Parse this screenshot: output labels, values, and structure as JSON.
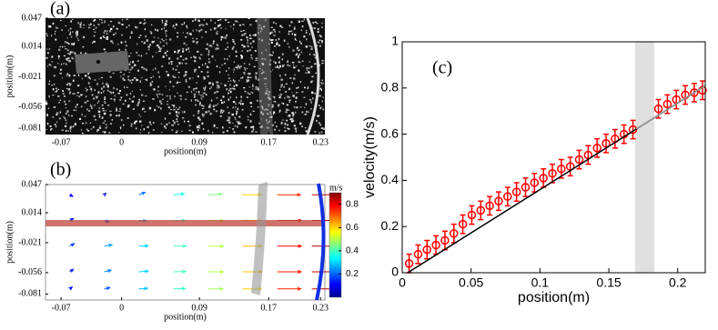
{
  "chart_data": [
    {
      "type": "image",
      "panel_label": "(a)",
      "xlabel": "position(m)",
      "ylabel": "position(m)",
      "xlim": [
        -0.088,
        0.235
      ],
      "ylim": [
        -0.088,
        0.047
      ],
      "xticks": [
        -0.07,
        0,
        0.09,
        0.17,
        0.23
      ],
      "yticks": [
        0.047,
        0.014,
        -0.021,
        -0.056,
        -0.081
      ]
    },
    {
      "type": "quiver",
      "panel_label": "(b)",
      "xlabel": "position(m)",
      "ylabel": "position(m)",
      "xlim": [
        -0.088,
        0.235
      ],
      "ylim": [
        -0.088,
        0.047
      ],
      "xticks": [
        -0.07,
        0,
        0.09,
        0.17,
        0.23
      ],
      "yticks": [
        0.047,
        0.014,
        -0.021,
        -0.056,
        -0.081
      ],
      "x": [
        -0.06,
        -0.02,
        0.02,
        0.06,
        0.1,
        0.14,
        0.18,
        0.22,
        -0.06,
        -0.02,
        0.02,
        0.06,
        0.1,
        0.14,
        0.18,
        0.22,
        -0.06,
        -0.02,
        0.02,
        0.06,
        0.1,
        0.14,
        0.18,
        0.22,
        -0.06,
        -0.02,
        0.02,
        0.06,
        0.1,
        0.14,
        0.18,
        0.22,
        -0.06,
        -0.02,
        0.02,
        0.06,
        0.1,
        0.14,
        0.18,
        0.22
      ],
      "y": [
        0.035,
        0.035,
        0.035,
        0.035,
        0.035,
        0.035,
        0.035,
        0.035,
        0.005,
        0.005,
        0.005,
        0.005,
        0.005,
        0.005,
        0.005,
        0.005,
        -0.025,
        -0.025,
        -0.025,
        -0.025,
        -0.025,
        -0.025,
        -0.025,
        -0.025,
        -0.055,
        -0.055,
        -0.055,
        -0.055,
        -0.055,
        -0.055,
        -0.055,
        -0.055,
        -0.075,
        -0.075,
        -0.075,
        -0.075,
        -0.075,
        -0.075,
        -0.075,
        -0.075
      ],
      "u": [
        0.1,
        0.05,
        0.2,
        0.35,
        0.45,
        0.6,
        0.75,
        0.85,
        0.12,
        0.15,
        0.25,
        0.38,
        0.5,
        0.62,
        0.78,
        0.85,
        0.15,
        0.25,
        0.3,
        0.4,
        0.5,
        0.62,
        0.78,
        0.86,
        0.12,
        0.22,
        0.3,
        0.4,
        0.5,
        0.62,
        0.77,
        0.85,
        0.08,
        0.18,
        0.28,
        0.38,
        0.48,
        0.6,
        0.76,
        0.84
      ],
      "v": [
        -0.05,
        0.05,
        0.08,
        0.03,
        0.02,
        0,
        0,
        0,
        0.06,
        -0.05,
        -0.02,
        0,
        0,
        0,
        0,
        0,
        0.08,
        0.04,
        0.01,
        0,
        0,
        0,
        0,
        0,
        0.08,
        0.05,
        0.02,
        0.01,
        0,
        0,
        0,
        0,
        0.06,
        0.04,
        0.02,
        0.01,
        0,
        0,
        0,
        0
      ],
      "colorbar": {
        "label": "m/s",
        "lim": [
          0,
          0.9
        ],
        "ticks": [
          0.2,
          0.4,
          0.6,
          0.8
        ]
      }
    },
    {
      "type": "errorbar",
      "annotation": "(c)",
      "xlabel": "position(m)",
      "ylabel": "velocity(m/s)",
      "xlim": [
        0,
        0.22
      ],
      "ylim": [
        0,
        1
      ],
      "xticks": [
        0,
        0.05,
        0.1,
        0.15,
        0.2
      ],
      "yticks": [
        0,
        0.2,
        0.4,
        0.6,
        0.8,
        1
      ],
      "band": {
        "x": [
          0.169,
          0.183
        ],
        "color": "#e0e0e0"
      },
      "series": [
        {
          "color": "#ff0000",
          "x": [
            0.005,
            0.0115,
            0.018,
            0.0245,
            0.031,
            0.0375,
            0.044,
            0.0505,
            0.057,
            0.0635,
            0.07,
            0.0765,
            0.083,
            0.0895,
            0.096,
            0.1025,
            0.109,
            0.1155,
            0.122,
            0.1285,
            0.135,
            0.1415,
            0.148,
            0.1545,
            0.161,
            0.1675,
            0.186,
            0.1925,
            0.199,
            0.2055,
            0.212,
            0.218
          ],
          "values": [
            0.04,
            0.08,
            0.1,
            0.12,
            0.14,
            0.17,
            0.21,
            0.25,
            0.27,
            0.29,
            0.31,
            0.33,
            0.35,
            0.37,
            0.39,
            0.41,
            0.43,
            0.45,
            0.46,
            0.49,
            0.51,
            0.54,
            0.56,
            0.58,
            0.6,
            0.62,
            0.71,
            0.73,
            0.75,
            0.77,
            0.78,
            0.79
          ],
          "errors": [
            0.04,
            0.04,
            0.04,
            0.04,
            0.04,
            0.04,
            0.04,
            0.04,
            0.04,
            0.04,
            0.04,
            0.04,
            0.04,
            0.04,
            0.04,
            0.04,
            0.04,
            0.04,
            0.04,
            0.04,
            0.04,
            0.04,
            0.04,
            0.04,
            0.04,
            0.04,
            0.04,
            0.04,
            0.04,
            0.04,
            0.04,
            0.04
          ]
        },
        {
          "color": "#000000",
          "x": [
            0.004,
            0.22
          ],
          "values": [
            0,
            0.81
          ]
        },
        {
          "color": "#999999",
          "x": [
            0.17,
            0.22
          ],
          "values": [
            0.623,
            0.81
          ]
        }
      ]
    }
  ]
}
